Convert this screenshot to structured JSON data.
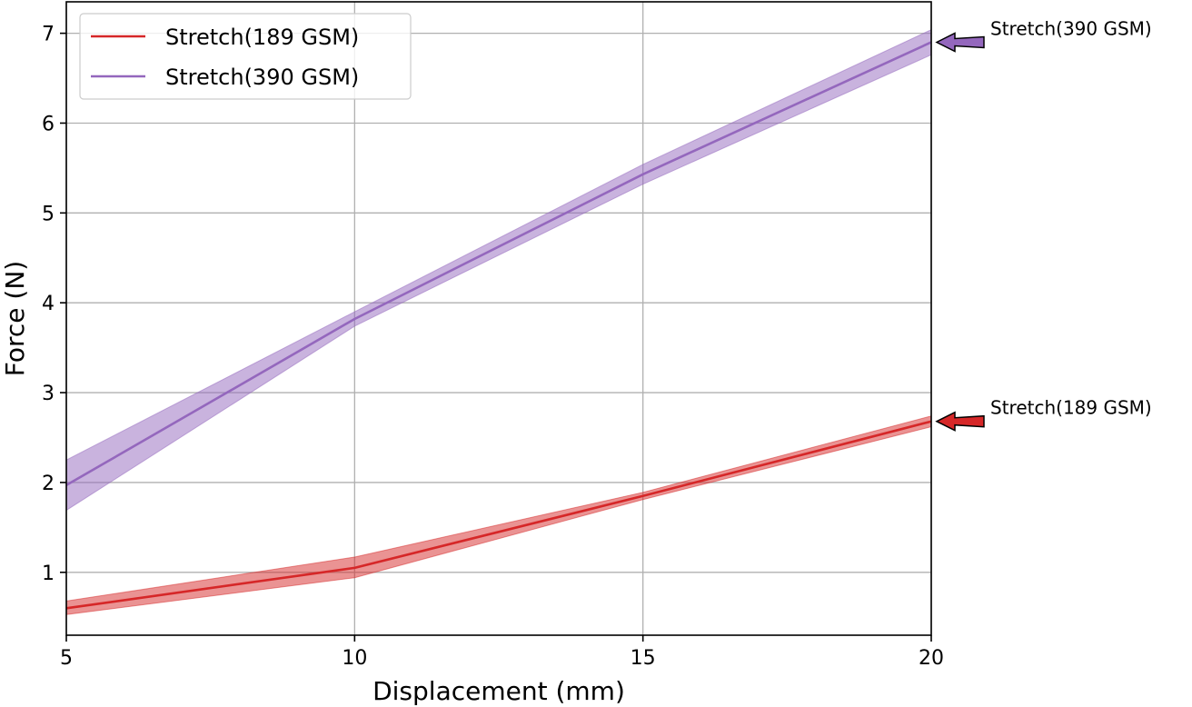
{
  "chart_data": {
    "type": "line",
    "xlabel": "Displacement (mm)",
    "ylabel": "Force (N)",
    "xlim": [
      5,
      20
    ],
    "ylim": [
      0.3,
      7.35
    ],
    "xticks": [
      5,
      10,
      15,
      20
    ],
    "yticks": [
      1,
      2,
      3,
      4,
      5,
      6,
      7
    ],
    "grid": true,
    "legend_position": "upper-left",
    "series": [
      {
        "name": "Stretch(189 GSM)",
        "color": "#d62728",
        "x": [
          5,
          10,
          15,
          20
        ],
        "y": [
          0.6,
          1.05,
          1.85,
          2.68
        ],
        "lower": [
          0.53,
          0.94,
          1.81,
          2.62
        ],
        "upper": [
          0.68,
          1.17,
          1.89,
          2.74
        ]
      },
      {
        "name": "Stretch(390 GSM)",
        "color": "#9467bd",
        "x": [
          5,
          10,
          15,
          20
        ],
        "y": [
          1.97,
          3.82,
          5.43,
          6.9
        ],
        "lower": [
          1.69,
          3.74,
          5.32,
          6.76
        ],
        "upper": [
          2.25,
          3.9,
          5.54,
          7.04
        ]
      }
    ],
    "annotations": [
      {
        "text": "Stretch(390 GSM)",
        "x": 20,
        "y": 6.9,
        "color": "#9467bd"
      },
      {
        "text": "Stretch(189 GSM)",
        "x": 20,
        "y": 2.68,
        "color": "#d62728"
      }
    ]
  }
}
